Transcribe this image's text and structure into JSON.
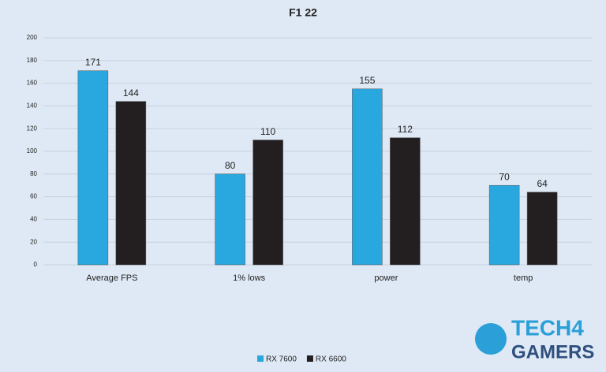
{
  "chart_data": {
    "type": "bar",
    "title": "F1 22",
    "categories": [
      "Average FPS",
      "1% lows",
      "power",
      "temp"
    ],
    "series": [
      {
        "name": "RX 7600",
        "color": "#29a8e0",
        "values": [
          171,
          80,
          155,
          70
        ]
      },
      {
        "name": "RX 6600",
        "color": "#231f20",
        "values": [
          144,
          110,
          112,
          64
        ]
      }
    ],
    "ylim": [
      0,
      200
    ],
    "yticks": [
      0,
      20,
      40,
      60,
      80,
      100,
      120,
      140,
      160,
      180,
      200
    ],
    "grid": true,
    "legend": "bottom"
  },
  "logo": {
    "line1": "TECH4",
    "line2": "GAMERS"
  }
}
